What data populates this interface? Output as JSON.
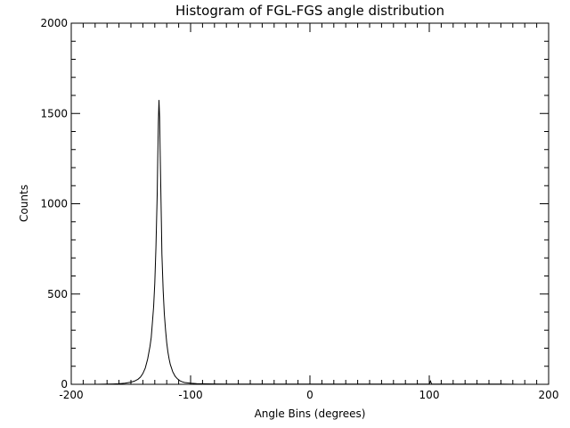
{
  "chart_data": {
    "type": "line",
    "title": "Histogram of FGL-FGS angle distribution",
    "xlabel": "Angle Bins (degrees)",
    "ylabel": "Counts",
    "xlim": [
      -200,
      200
    ],
    "ylim": [
      0,
      2000
    ],
    "x_ticks": [
      -200,
      -100,
      0,
      100,
      200
    ],
    "x_tick_labels": [
      "-200",
      "-100",
      "0",
      "100",
      "200"
    ],
    "y_ticks": [
      0,
      500,
      1000,
      1500,
      2000
    ],
    "y_tick_labels": [
      "0",
      "500",
      "1000",
      "1500",
      "2000"
    ],
    "grid": false,
    "series": [
      {
        "x": [
          -180,
          -170,
          -160,
          -155,
          -150,
          -147,
          -144,
          -142,
          -140,
          -138,
          -136,
          -134,
          -133,
          -132,
          -131,
          -130,
          -129,
          -128,
          -127.5,
          -127,
          -126.5,
          -126,
          -125.5,
          -125,
          -124.5,
          -124,
          -123,
          -122,
          -121,
          -120,
          -119,
          -118,
          -117,
          -116,
          -115,
          -113,
          -111,
          -109,
          -107,
          -105,
          -100,
          -95,
          -90,
          -80,
          -60,
          -40,
          -20,
          0,
          20,
          40,
          60,
          80,
          100,
          101,
          102,
          120,
          140,
          160,
          175
        ],
        "y": [
          0,
          1,
          3,
          6,
          12,
          18,
          28,
          40,
          60,
          90,
          140,
          210,
          260,
          340,
          430,
          560,
          760,
          1050,
          1250,
          1450,
          1575,
          1480,
          1300,
          1100,
          900,
          720,
          520,
          390,
          300,
          230,
          180,
          140,
          110,
          90,
          70,
          45,
          30,
          20,
          14,
          10,
          6,
          4,
          3,
          2,
          1,
          1,
          1,
          1,
          1,
          1,
          1,
          1,
          1,
          18,
          1,
          1,
          1,
          1,
          0
        ]
      }
    ]
  }
}
